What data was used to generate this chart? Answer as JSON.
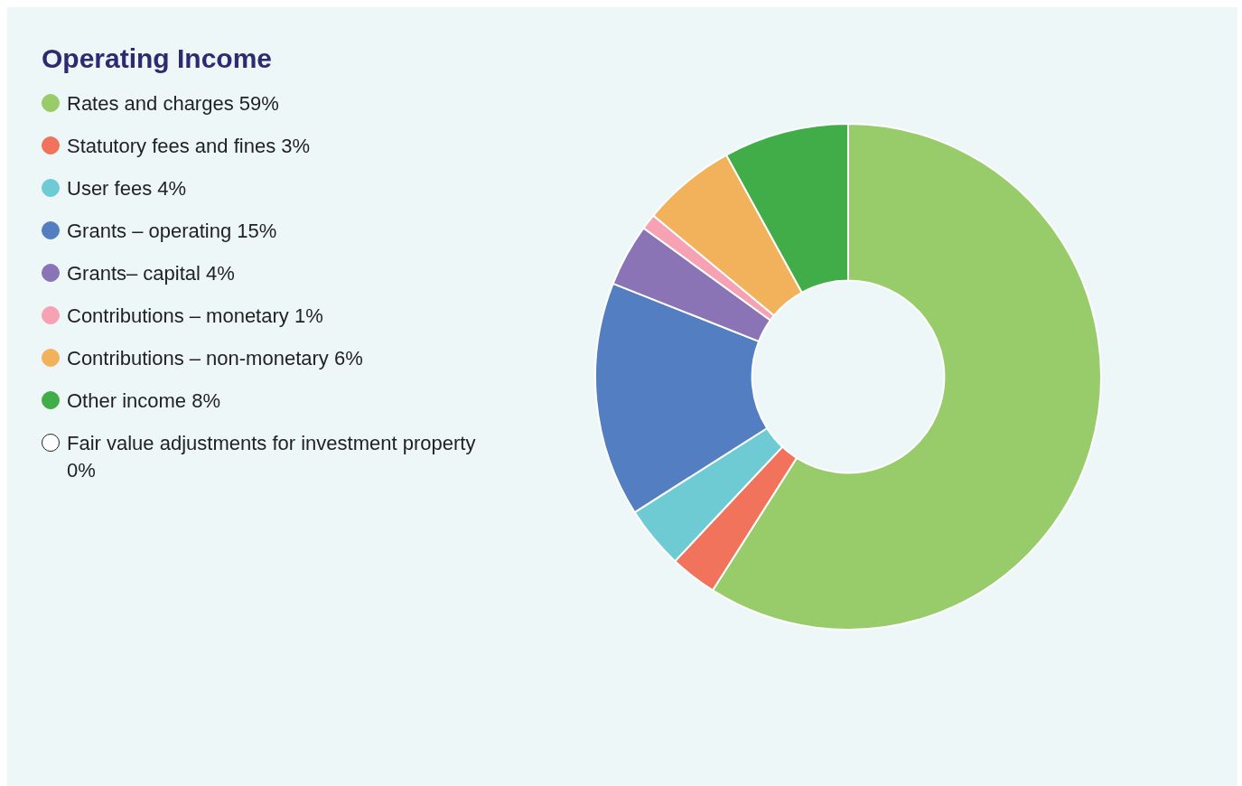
{
  "chart_data": {
    "type": "donut",
    "title": "Operating Income",
    "categories": [
      "Rates and charges",
      "Statutory fees and fines",
      "User fees",
      "Grants – operating",
      "Grants– capital",
      "Contributions – monetary",
      "Contributions – non-monetary",
      "Other income",
      "Fair value adjustments for investment property"
    ],
    "values": [
      59,
      3,
      4,
      15,
      4,
      1,
      6,
      8,
      0
    ],
    "value_labels": [
      "59%",
      "3%",
      "4%",
      "15%",
      "4%",
      "1%",
      "6%",
      "8%",
      "0%"
    ],
    "colors": [
      "#98cc6a",
      "#f2735b",
      "#6ecbd4",
      "#537ec1",
      "#8b74b5",
      "#f7a1b4",
      "#f2b25c",
      "#41ad49",
      "#ffffff"
    ],
    "legend": "top left"
  }
}
